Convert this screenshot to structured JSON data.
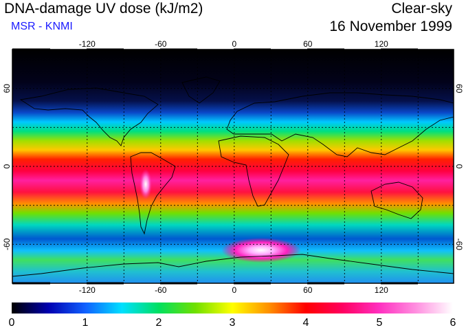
{
  "header": {
    "title": "DNA-damage UV dose (kJ/m2)",
    "source": "MSR - KNMI",
    "condition": "Clear-sky",
    "date": "16 November 1999"
  },
  "map": {
    "lon_ticks": [
      "-120",
      "-60",
      "0",
      "60",
      "120"
    ],
    "lat_ticks_left": [
      "60",
      "0",
      "-60"
    ],
    "lat_ticks_right": [
      "60",
      "0",
      "-60"
    ],
    "gridlines": "dotted every 30 degrees"
  },
  "colorbar": {
    "labels": [
      "0",
      "1",
      "2",
      "3",
      "4",
      "5",
      "6"
    ],
    "min": 0,
    "max": 6,
    "colors": [
      "#000000",
      "#0000b0",
      "#1060ff",
      "#00e0ff",
      "#00e060",
      "#70e000",
      "#ffff00",
      "#ff9000",
      "#ff0000",
      "#ff0060",
      "#ff30c0",
      "#ff90e0",
      "#ffffff"
    ]
  }
}
